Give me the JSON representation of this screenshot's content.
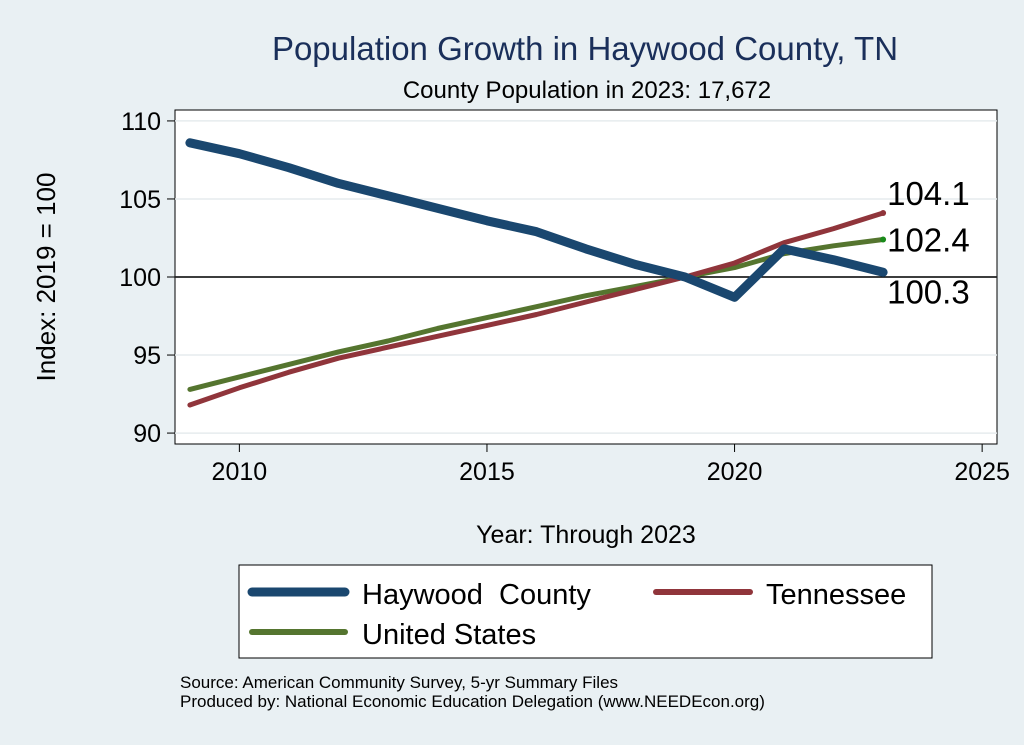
{
  "chart_data": {
    "type": "line",
    "title": "Population Growth in Haywood County, TN",
    "subtitle": "County Population in 2023: 17,672",
    "xlabel": "Year: Through 2023",
    "ylabel": "Index: 2019 = 100",
    "xlim": [
      2008.7,
      2025.3
    ],
    "ylim": [
      89.3,
      110.7
    ],
    "x_ticks": [
      2010,
      2015,
      2020,
      2025
    ],
    "y_ticks": [
      90,
      95,
      100,
      105,
      110
    ],
    "reference_line": 100,
    "grid": true,
    "x": [
      2009,
      2010,
      2011,
      2012,
      2013,
      2014,
      2015,
      2016,
      2017,
      2018,
      2019,
      2020,
      2021,
      2022,
      2023
    ],
    "series": [
      {
        "name": "Haywood  County",
        "color": "#1a476f",
        "values": [
          108.6,
          107.9,
          107.0,
          106.0,
          105.2,
          104.4,
          103.6,
          102.9,
          101.8,
          100.8,
          100.0,
          98.7,
          101.8,
          101.1,
          100.3
        ],
        "end_label": "100.3"
      },
      {
        "name": "Tennessee",
        "color": "#90353b",
        "values": [
          91.8,
          92.9,
          93.9,
          94.8,
          95.5,
          96.2,
          96.9,
          97.6,
          98.4,
          99.2,
          100.0,
          100.9,
          102.2,
          103.1,
          104.1
        ],
        "end_label": "104.1"
      },
      {
        "name": "United States",
        "color": "#55752f",
        "values": [
          92.8,
          93.6,
          94.4,
          95.2,
          95.9,
          96.7,
          97.4,
          98.1,
          98.8,
          99.4,
          100.0,
          100.6,
          101.5,
          102.0,
          102.4
        ],
        "end_label": "102.4"
      }
    ],
    "legend": {
      "placement": "bottom",
      "entries": [
        "Haywood  County",
        "Tennessee",
        "United States"
      ]
    }
  },
  "source": {
    "line1": "Source: American Community Survey, 5-yr Summary Files",
    "line2": "Produced by: National Economic Education Delegation (www.NEEDEcon.org)"
  }
}
